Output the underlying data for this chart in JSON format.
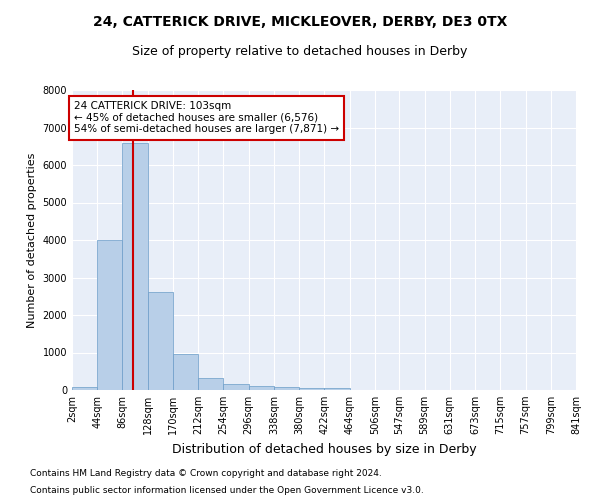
{
  "title1": "24, CATTERICK DRIVE, MICKLEOVER, DERBY, DE3 0TX",
  "title2": "Size of property relative to detached houses in Derby",
  "xlabel": "Distribution of detached houses by size in Derby",
  "ylabel": "Number of detached properties",
  "footnote1": "Contains HM Land Registry data © Crown copyright and database right 2024.",
  "footnote2": "Contains public sector information licensed under the Open Government Licence v3.0.",
  "bar_edges": [
    2,
    44,
    86,
    128,
    170,
    212,
    254,
    296,
    338,
    380,
    422,
    464,
    506,
    547,
    589,
    631,
    673,
    715,
    757,
    799,
    841
  ],
  "bar_heights": [
    90,
    4000,
    6576,
    2620,
    960,
    330,
    150,
    120,
    80,
    60,
    60,
    0,
    0,
    0,
    0,
    0,
    0,
    0,
    0,
    0
  ],
  "bar_color": "#b8cfe8",
  "bar_edge_color": "#6a9cc8",
  "red_line_x": 103,
  "annotation_text": "24 CATTERICK DRIVE: 103sqm\n← 45% of detached houses are smaller (6,576)\n54% of semi-detached houses are larger (7,871) →",
  "annotation_box_color": "#cc0000",
  "ylim": [
    0,
    8000
  ],
  "background_color": "#e8eef8",
  "grid_color": "#ffffff",
  "title1_fontsize": 10,
  "title2_fontsize": 9,
  "xlabel_fontsize": 9,
  "ylabel_fontsize": 8,
  "tick_fontsize": 7,
  "annotation_fontsize": 7.5,
  "footnote_fontsize": 6.5
}
